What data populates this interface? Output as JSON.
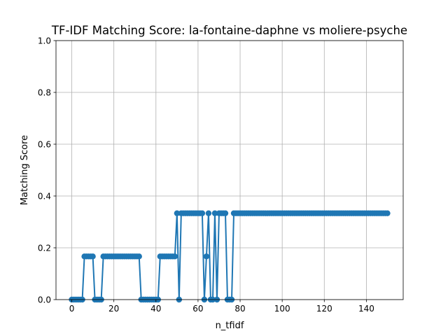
{
  "chart_data": {
    "type": "line",
    "title": "TF-IDF Matching Score: la-fontaine-daphne vs moliere-psyche",
    "xlabel": "n_tfidf",
    "ylabel": "Matching Score",
    "xlim": [
      -7.5,
      157.5
    ],
    "ylim": [
      0,
      1
    ],
    "xticks": [
      0,
      20,
      40,
      60,
      80,
      100,
      120,
      140
    ],
    "yticks": [
      0.0,
      0.2,
      0.4,
      0.6,
      0.8,
      1.0
    ],
    "grid": true,
    "marker": "circle",
    "series_color": "#1f77b4",
    "x": [
      0,
      1,
      2,
      3,
      4,
      5,
      6,
      7,
      8,
      9,
      10,
      11,
      12,
      13,
      14,
      15,
      16,
      17,
      18,
      19,
      20,
      21,
      22,
      23,
      24,
      25,
      26,
      27,
      28,
      29,
      30,
      31,
      32,
      33,
      34,
      35,
      36,
      37,
      38,
      39,
      40,
      41,
      42,
      43,
      44,
      45,
      46,
      47,
      48,
      49,
      50,
      51,
      52,
      53,
      54,
      55,
      56,
      57,
      58,
      59,
      60,
      61,
      62,
      63,
      64,
      65,
      66,
      67,
      68,
      69,
      70,
      71,
      72,
      73,
      74,
      75,
      76,
      77,
      78,
      79,
      80,
      81,
      82,
      83,
      84,
      85,
      86,
      87,
      88,
      89,
      90,
      91,
      92,
      93,
      94,
      95,
      96,
      97,
      98,
      99,
      100,
      101,
      102,
      103,
      104,
      105,
      106,
      107,
      108,
      109,
      110,
      111,
      112,
      113,
      114,
      115,
      116,
      117,
      118,
      119,
      120,
      121,
      122,
      123,
      124,
      125,
      126,
      127,
      128,
      129,
      130,
      131,
      132,
      133,
      134,
      135,
      136,
      137,
      138,
      139,
      140,
      141,
      142,
      143,
      144,
      145,
      146,
      147,
      148,
      149,
      150
    ],
    "y": [
      0,
      0,
      0,
      0,
      0,
      0,
      0.1667,
      0.1667,
      0.1667,
      0.1667,
      0.1667,
      0,
      0,
      0,
      0,
      0.1667,
      0.1667,
      0.1667,
      0.1667,
      0.1667,
      0.1667,
      0.1667,
      0.1667,
      0.1667,
      0.1667,
      0.1667,
      0.1667,
      0.1667,
      0.1667,
      0.1667,
      0.1667,
      0.1667,
      0.1667,
      0,
      0,
      0,
      0,
      0,
      0,
      0,
      0,
      0,
      0.1667,
      0.1667,
      0.1667,
      0.1667,
      0.1667,
      0.1667,
      0.1667,
      0.1667,
      0.3333,
      0,
      0.3333,
      0.3333,
      0.3333,
      0.3333,
      0.3333,
      0.3333,
      0.3333,
      0.3333,
      0.3333,
      0.3333,
      0.3333,
      0,
      0.1667,
      0.3333,
      0,
      0,
      0.3333,
      0,
      0.3333,
      0.3333,
      0.3333,
      0.3333,
      0,
      0,
      0,
      0.3333,
      0.3333,
      0.3333,
      0.3333,
      0.3333,
      0.3333,
      0.3333,
      0.3333,
      0.3333,
      0.3333,
      0.3333,
      0.3333,
      0.3333,
      0.3333,
      0.3333,
      0.3333,
      0.3333,
      0.3333,
      0.3333,
      0.3333,
      0.3333,
      0.3333,
      0.3333,
      0.3333,
      0.3333,
      0.3333,
      0.3333,
      0.3333,
      0.3333,
      0.3333,
      0.3333,
      0.3333,
      0.3333,
      0.3333,
      0.3333,
      0.3333,
      0.3333,
      0.3333,
      0.3333,
      0.3333,
      0.3333,
      0.3333,
      0.3333,
      0.3333,
      0.3333,
      0.3333,
      0.3333,
      0.3333,
      0.3333,
      0.3333,
      0.3333,
      0.3333,
      0.3333,
      0.3333,
      0.3333,
      0.3333,
      0.3333,
      0.3333,
      0.3333,
      0.3333,
      0.3333,
      0.3333,
      0.3333,
      0.3333,
      0.3333,
      0.3333,
      0.3333,
      0.3333,
      0.3333,
      0.3333,
      0.3333,
      0.3333,
      0.3333,
      0.3333
    ]
  }
}
